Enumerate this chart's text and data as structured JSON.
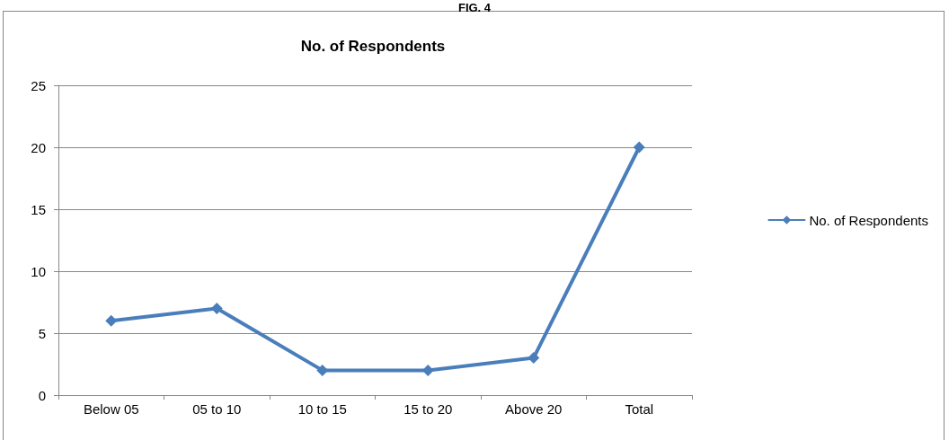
{
  "chart_data": {
    "type": "line",
    "title": "No. of Respondents",
    "annotations": [
      "FIG. 4"
    ],
    "categories": [
      "Below 05",
      "05 to 10",
      "10 to 15",
      "15 to 20",
      "Above 20",
      "Total"
    ],
    "series": [
      {
        "name": "No. of Respondents",
        "color": "#4a7ebb",
        "values": [
          6,
          7,
          2,
          2,
          3,
          20
        ]
      }
    ],
    "ylim": [
      0,
      25
    ],
    "yticks": [
      0,
      5,
      10,
      15,
      20,
      25
    ],
    "grid": "y",
    "legend": "right",
    "marker": "diamond",
    "line_style": "solid"
  }
}
